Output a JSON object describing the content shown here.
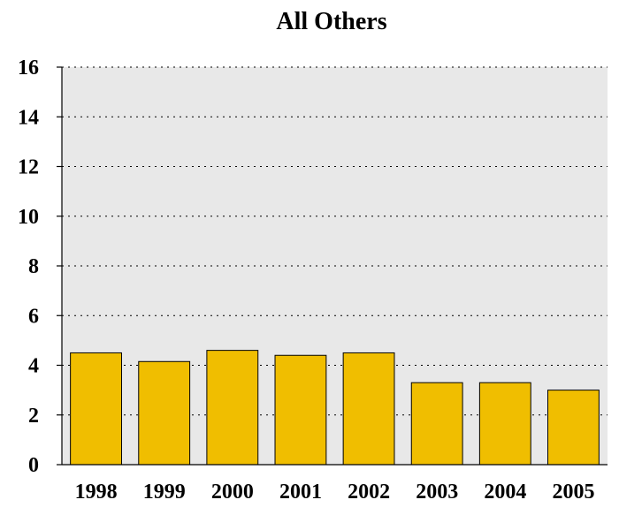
{
  "chart_data": {
    "type": "bar",
    "title": "All Others",
    "xlabel": "",
    "ylabel": "",
    "categories": [
      "1998",
      "1999",
      "2000",
      "2001",
      "2002",
      "2003",
      "2004",
      "2005"
    ],
    "values": [
      4.5,
      4.15,
      4.6,
      4.4,
      4.5,
      3.3,
      3.3,
      3.0
    ],
    "ylim": [
      0,
      16
    ],
    "yticks": [
      "0",
      "2",
      "4",
      "6",
      "8",
      "10",
      "12",
      "14",
      "16"
    ],
    "grid": "horizontal dotted",
    "legend": "none",
    "colors": {
      "bar_fill": "#f0be00",
      "bar_stroke": "#000000",
      "plot_background": "#e8e8e8",
      "grid_line": "#000000"
    }
  }
}
